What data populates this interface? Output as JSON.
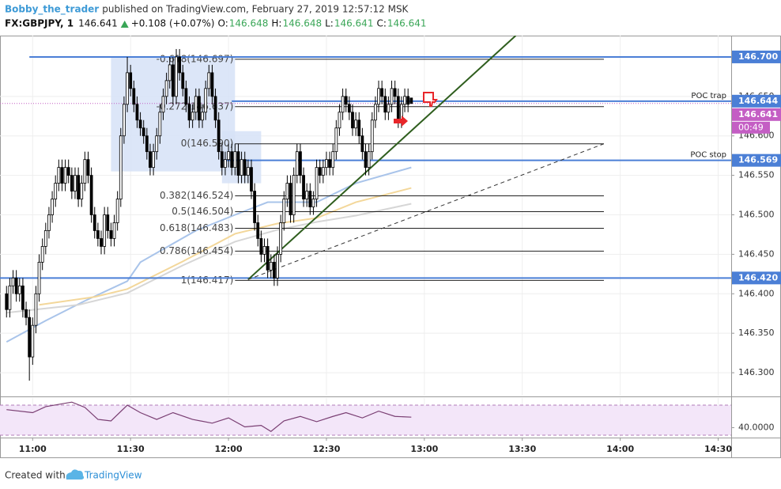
{
  "chart_data": {
    "type": "candlestick",
    "header": {
      "author": "Bobby_the_trader",
      "published": "published on TradingView.com, February 27, 2019 12:57:12 MSK",
      "symbol": "FX:GBPJPY, 1",
      "last": "146.641",
      "change": "+0.108 (+0.07%)",
      "ohlc": [
        {
          "label": "O:",
          "value": "146.648"
        },
        {
          "label": "H:",
          "value": "146.648"
        },
        {
          "label": "L:",
          "value": "146.641"
        },
        {
          "label": "C:",
          "value": "146.641"
        }
      ]
    },
    "footer": {
      "text": "Created with",
      "brand": "TradingView"
    },
    "xlim": [
      "10:50",
      "14:34"
    ],
    "xticks": [
      "11:00",
      "11:30",
      "12:00",
      "12:30",
      "13:00",
      "13:30",
      "14:00",
      "14:30"
    ],
    "ylim": [
      146.271,
      146.727
    ],
    "yticks": [
      {
        "value": 146.3,
        "label": "146.300"
      },
      {
        "value": 146.35,
        "label": "146.350"
      },
      {
        "value": 146.4,
        "label": "146.400"
      },
      {
        "value": 146.45,
        "label": "146.450"
      },
      {
        "value": 146.5,
        "label": "146.500"
      },
      {
        "value": 146.55,
        "label": "146.550"
      },
      {
        "value": 146.6,
        "label": "146.600"
      },
      {
        "value": 146.65,
        "label": "146.650"
      }
    ],
    "grid": true,
    "up_fill": "#ffffff",
    "down_fill": "#000000",
    "candles": {
      "x": [
        "10:52",
        "10:53",
        "10:54",
        "10:55",
        "10:56",
        "10:57",
        "10:58",
        "10:59",
        "11:00",
        "11:01",
        "11:02",
        "11:03",
        "11:04",
        "11:05",
        "11:06",
        "11:07",
        "11:08",
        "11:09",
        "11:10",
        "11:11",
        "11:12",
        "11:13",
        "11:14",
        "11:15",
        "11:16",
        "11:17",
        "11:18",
        "11:19",
        "11:20",
        "11:21",
        "11:22",
        "11:23",
        "11:24",
        "11:25",
        "11:26",
        "11:27",
        "11:28",
        "11:29",
        "11:30",
        "11:31",
        "11:32",
        "11:33",
        "11:34",
        "11:35",
        "11:36",
        "11:37",
        "11:38",
        "11:39",
        "11:40",
        "11:41",
        "11:42",
        "11:43",
        "11:44",
        "11:45",
        "11:46",
        "11:47",
        "11:48",
        "11:49",
        "11:50",
        "11:51",
        "11:52",
        "11:53",
        "11:54",
        "11:55",
        "11:56",
        "11:57",
        "11:58",
        "11:59",
        "12:00",
        "12:01",
        "12:02",
        "12:03",
        "12:04",
        "12:05",
        "12:06",
        "12:07",
        "12:08",
        "12:09",
        "12:10",
        "12:11",
        "12:12",
        "12:13",
        "12:14",
        "12:15",
        "12:16",
        "12:17",
        "12:18",
        "12:19",
        "12:20",
        "12:21",
        "12:22",
        "12:23",
        "12:24",
        "12:25",
        "12:26",
        "12:27",
        "12:28",
        "12:29",
        "12:30",
        "12:31",
        "12:32",
        "12:33",
        "12:34",
        "12:35",
        "12:36",
        "12:37",
        "12:38",
        "12:39",
        "12:40",
        "12:41",
        "12:42",
        "12:43",
        "12:44",
        "12:45",
        "12:46",
        "12:47",
        "12:48",
        "12:49",
        "12:50",
        "12:51",
        "12:52",
        "12:53",
        "12:54",
        "12:55",
        "12:56"
      ],
      "open": [
        146.4,
        146.38,
        146.41,
        146.42,
        146.4,
        146.41,
        146.38,
        146.37,
        146.32,
        146.36,
        146.4,
        146.44,
        146.46,
        146.48,
        146.5,
        146.52,
        146.54,
        146.56,
        146.54,
        146.56,
        146.55,
        146.53,
        146.55,
        146.52,
        146.54,
        146.57,
        146.55,
        146.5,
        146.48,
        146.47,
        146.46,
        146.5,
        146.48,
        146.47,
        146.49,
        146.52,
        146.6,
        146.64,
        146.68,
        146.66,
        146.64,
        146.62,
        146.61,
        146.6,
        146.58,
        146.56,
        146.58,
        146.6,
        146.63,
        146.65,
        146.67,
        146.69,
        146.65,
        146.7,
        146.68,
        146.66,
        146.64,
        146.62,
        146.63,
        146.65,
        146.62,
        146.63,
        146.66,
        146.68,
        146.65,
        146.62,
        146.58,
        146.56,
        146.57,
        146.58,
        146.56,
        146.58,
        146.55,
        146.57,
        146.55,
        146.56,
        146.53,
        146.49,
        146.47,
        146.45,
        146.46,
        146.43,
        146.44,
        146.42,
        146.45,
        146.49,
        146.52,
        146.54,
        146.5,
        146.55,
        146.58,
        146.55,
        146.52,
        146.53,
        146.51,
        146.52,
        146.56,
        146.55,
        146.56,
        146.57,
        146.56,
        146.58,
        146.61,
        146.63,
        146.65,
        146.64,
        146.63,
        146.61,
        146.62,
        146.6,
        146.58,
        146.56,
        146.58,
        146.62,
        146.64,
        146.66,
        146.65,
        146.63,
        146.64,
        146.66,
        146.65,
        146.62,
        146.64,
        146.65,
        146.648
      ],
      "high": [
        146.41,
        146.42,
        146.43,
        146.43,
        146.42,
        146.42,
        146.39,
        146.38,
        146.37,
        146.41,
        146.45,
        146.47,
        146.49,
        146.51,
        146.53,
        146.55,
        146.57,
        146.57,
        146.57,
        146.57,
        146.56,
        146.56,
        146.56,
        146.55,
        146.58,
        146.58,
        146.56,
        146.51,
        146.49,
        146.48,
        146.51,
        146.51,
        146.49,
        146.5,
        146.53,
        146.61,
        146.65,
        146.7,
        146.69,
        146.67,
        146.65,
        146.63,
        146.62,
        146.61,
        146.59,
        146.59,
        146.61,
        146.64,
        146.66,
        146.68,
        146.7,
        146.7,
        146.71,
        146.71,
        146.69,
        146.67,
        146.65,
        146.64,
        146.66,
        146.66,
        146.64,
        146.67,
        146.69,
        146.69,
        146.66,
        146.63,
        146.59,
        146.58,
        146.59,
        146.59,
        146.59,
        146.59,
        146.58,
        146.58,
        146.57,
        146.57,
        146.54,
        146.5,
        146.48,
        146.47,
        146.47,
        146.45,
        146.45,
        146.46,
        146.5,
        146.53,
        146.55,
        146.55,
        146.56,
        146.59,
        146.59,
        146.56,
        146.54,
        146.54,
        146.53,
        146.57,
        146.57,
        146.57,
        146.58,
        146.58,
        146.59,
        146.62,
        146.64,
        146.66,
        146.66,
        146.65,
        146.64,
        146.63,
        146.63,
        146.61,
        146.59,
        146.59,
        146.63,
        146.65,
        146.67,
        146.67,
        146.66,
        146.65,
        146.67,
        146.67,
        146.66,
        146.65,
        146.66,
        146.66,
        146.648
      ],
      "low": [
        146.37,
        146.37,
        146.4,
        146.39,
        146.39,
        146.37,
        146.36,
        146.29,
        146.31,
        146.35,
        146.39,
        146.43,
        146.45,
        146.47,
        146.49,
        146.51,
        146.53,
        146.53,
        146.53,
        146.54,
        146.52,
        146.52,
        146.51,
        146.51,
        146.53,
        146.54,
        146.49,
        146.47,
        146.46,
        146.45,
        146.45,
        146.47,
        146.46,
        146.46,
        146.48,
        146.51,
        146.59,
        146.63,
        146.65,
        146.63,
        146.61,
        146.6,
        146.59,
        146.57,
        146.55,
        146.55,
        146.57,
        146.59,
        146.62,
        146.64,
        146.66,
        146.64,
        146.64,
        146.67,
        146.65,
        146.63,
        146.61,
        146.61,
        146.62,
        146.61,
        146.61,
        146.62,
        146.65,
        146.64,
        146.61,
        146.57,
        146.55,
        146.55,
        146.56,
        146.55,
        146.55,
        146.54,
        146.54,
        146.54,
        146.54,
        146.52,
        146.48,
        146.46,
        146.44,
        146.44,
        146.42,
        146.42,
        146.41,
        146.41,
        146.44,
        146.48,
        146.51,
        146.49,
        146.49,
        146.54,
        146.54,
        146.51,
        146.51,
        146.5,
        146.5,
        146.51,
        146.54,
        146.54,
        146.55,
        146.55,
        146.55,
        146.57,
        146.6,
        146.62,
        146.63,
        146.62,
        146.6,
        146.6,
        146.59,
        146.57,
        146.55,
        146.55,
        146.57,
        146.61,
        146.63,
        146.64,
        146.62,
        146.62,
        146.63,
        146.64,
        146.61,
        146.61,
        146.63,
        146.63,
        146.641
      ],
      "close": [
        146.38,
        146.41,
        146.42,
        146.4,
        146.41,
        146.38,
        146.37,
        146.32,
        146.36,
        146.4,
        146.44,
        146.46,
        146.48,
        146.5,
        146.52,
        146.54,
        146.56,
        146.54,
        146.56,
        146.55,
        146.53,
        146.55,
        146.52,
        146.54,
        146.57,
        146.55,
        146.5,
        146.48,
        146.47,
        146.46,
        146.5,
        146.48,
        146.47,
        146.49,
        146.52,
        146.6,
        146.64,
        146.68,
        146.66,
        146.64,
        146.62,
        146.61,
        146.6,
        146.58,
        146.56,
        146.58,
        146.6,
        146.63,
        146.65,
        146.67,
        146.69,
        146.65,
        146.7,
        146.68,
        146.66,
        146.64,
        146.62,
        146.63,
        146.65,
        146.62,
        146.63,
        146.66,
        146.68,
        146.65,
        146.62,
        146.58,
        146.56,
        146.57,
        146.58,
        146.56,
        146.58,
        146.55,
        146.57,
        146.55,
        146.56,
        146.53,
        146.49,
        146.47,
        146.45,
        146.46,
        146.43,
        146.44,
        146.42,
        146.45,
        146.49,
        146.52,
        146.54,
        146.5,
        146.55,
        146.58,
        146.55,
        146.52,
        146.53,
        146.51,
        146.52,
        146.56,
        146.55,
        146.56,
        146.57,
        146.56,
        146.58,
        146.61,
        146.63,
        146.65,
        146.64,
        146.63,
        146.61,
        146.62,
        146.6,
        146.58,
        146.56,
        146.58,
        146.62,
        146.64,
        146.66,
        146.65,
        146.63,
        146.64,
        146.66,
        146.65,
        146.62,
        146.64,
        146.65,
        146.64,
        146.641
      ]
    },
    "moving_averages": [
      {
        "color": "#a9c4ea",
        "x": [
          "10:52",
          "11:04",
          "11:16",
          "11:29",
          "11:33",
          "11:50",
          "12:02",
          "12:12",
          "12:27",
          "12:39",
          "12:56"
        ],
        "values": [
          146.339,
          146.366,
          146.391,
          146.416,
          146.44,
          146.48,
          146.5,
          146.516,
          146.516,
          146.54,
          146.56
        ]
      },
      {
        "color": "#f3d79a",
        "x": [
          "11:02",
          "11:19",
          "11:29",
          "11:46",
          "12:02",
          "12:15",
          "12:27",
          "12:39",
          "12:56"
        ],
        "values": [
          146.386,
          146.396,
          146.406,
          146.441,
          146.476,
          146.489,
          146.496,
          146.516,
          146.534
        ]
      },
      {
        "color": "#d6d6d6",
        "x": [
          "10:52",
          "11:14",
          "11:29",
          "11:46",
          "12:02",
          "12:15",
          "12:27",
          "12:39",
          "12:56"
        ],
        "values": [
          146.376,
          146.386,
          146.401,
          146.436,
          146.466,
          146.481,
          146.491,
          146.499,
          146.514
        ]
      }
    ],
    "boxes": [
      {
        "x": [
          "11:24",
          "12:02"
        ],
        "y": [
          146.555,
          146.7
        ],
        "color": "#d6e2f7"
      },
      {
        "x": [
          "11:58",
          "12:10"
        ],
        "y": [
          146.54,
          146.606
        ],
        "color": "#d6e2f7"
      }
    ],
    "levels": [
      {
        "value": 146.7,
        "label": "146.700",
        "from": "10:59"
      },
      {
        "value": 146.644,
        "label": "146.644",
        "from": "12:01",
        "note": "POC trap"
      },
      {
        "value": 146.569,
        "label": "146.569",
        "from": "11:58",
        "note": "POC stop"
      },
      {
        "value": 146.42,
        "label": "146.420",
        "from": "10:50"
      }
    ],
    "level_color": "#4b7fd6",
    "last_price": {
      "value": 146.641,
      "label": "146.641",
      "timer": "00:49",
      "color": "#c45ec4"
    },
    "fib": {
      "x": [
        "12:02",
        "13:55"
      ],
      "levels": [
        {
          "value": 146.697,
          "label": "-0.618(146.697)"
        },
        {
          "value": 146.637,
          "label": "-0.272(146.637)"
        },
        {
          "value": 146.59,
          "label": "0(146.590)"
        },
        {
          "value": 146.524,
          "label": "0.382(146.524)"
        },
        {
          "value": 146.504,
          "label": "0.5(146.504)"
        },
        {
          "value": 146.483,
          "label": "0.618(146.483)"
        },
        {
          "value": 146.454,
          "label": "0.786(146.454)"
        },
        {
          "value": 146.417,
          "label": "1(146.417)"
        }
      ]
    },
    "trend_lines": [
      {
        "x": [
          "12:06",
          "13:28"
        ],
        "y": [
          146.418,
          146.727
        ],
        "color": "#2f5e1e",
        "dashed": false
      },
      {
        "x": [
          "12:06",
          "13:55"
        ],
        "y": [
          146.418,
          146.59
        ],
        "color": "#333333",
        "dashed": true
      }
    ],
    "rsi": {
      "ylim": [
        26.8,
        79.5
      ],
      "yticks": [
        {
          "value": 40,
          "label": "40.0000"
        }
      ],
      "bands": [
        30,
        70
      ],
      "color": "#7a3f73",
      "x": [
        "10:52",
        "11:00",
        "11:04",
        "11:12",
        "11:16",
        "11:20",
        "11:24",
        "11:29",
        "11:33",
        "11:38",
        "11:43",
        "11:49",
        "11:55",
        "12:00",
        "12:05",
        "12:10",
        "12:13",
        "12:17",
        "12:22",
        "12:27",
        "12:32",
        "12:36",
        "12:41",
        "12:46",
        "12:51",
        "12:56"
      ],
      "values": [
        64,
        60,
        68,
        74,
        67,
        51,
        49,
        70,
        60,
        51,
        60,
        51,
        46,
        53,
        41,
        43,
        35,
        49,
        55,
        48,
        55,
        60,
        53,
        62,
        55,
        54
      ]
    }
  }
}
